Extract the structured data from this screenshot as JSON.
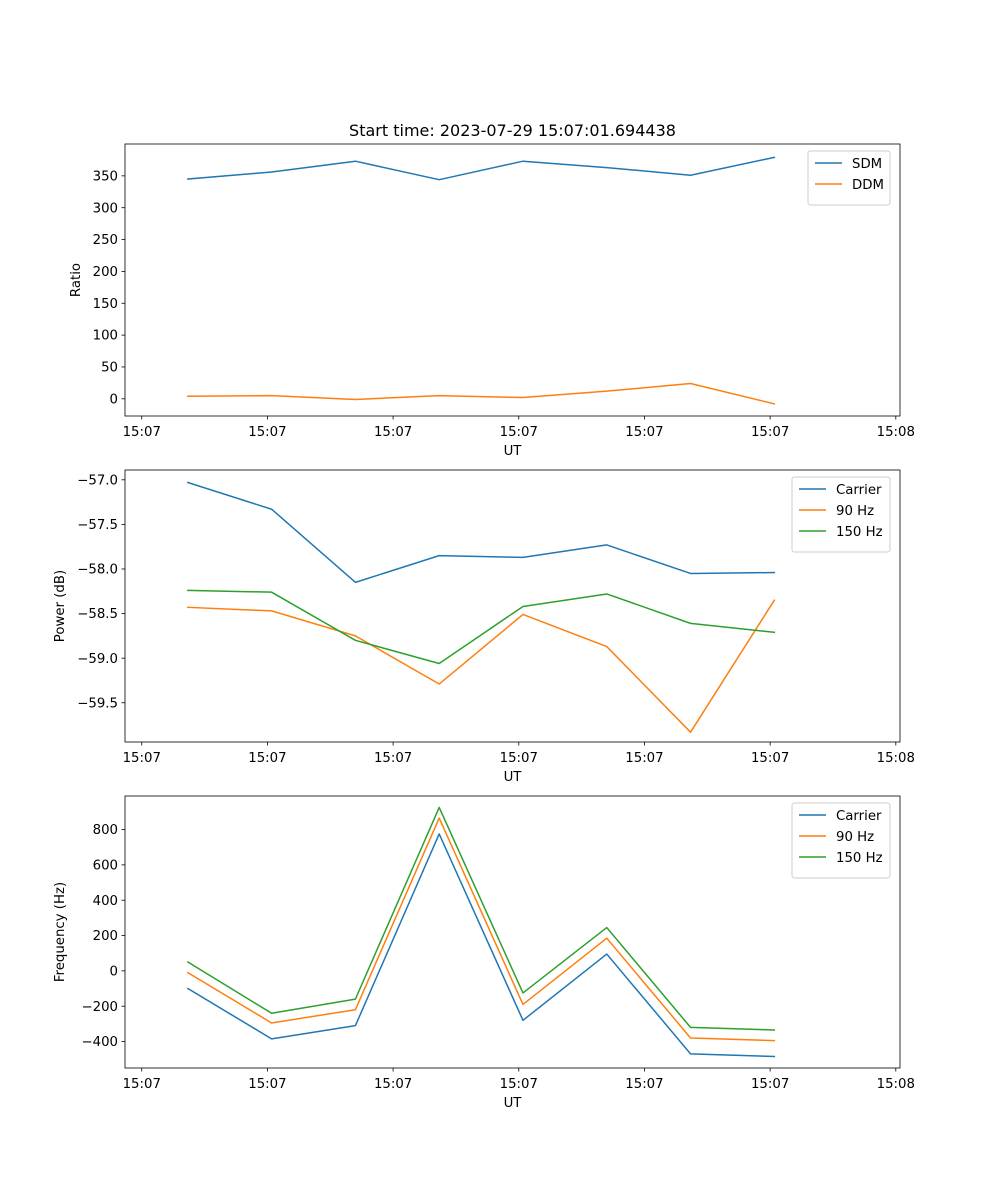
{
  "chart_data": [
    {
      "type": "line",
      "title": "Start time: 2023-07-29 15:07:01.694438",
      "xlabel": "UT",
      "ylabel": "Ratio",
      "x_index": [
        0,
        1,
        2,
        3,
        4,
        5,
        6,
        7
      ],
      "xlim": [
        -0.75,
        8.5
      ],
      "x_ticks": [
        -0.55,
        0.95,
        2.45,
        3.95,
        5.45,
        6.95,
        8.45
      ],
      "x_tick_labels": [
        "15:07",
        "15:07",
        "15:07",
        "15:07",
        "15:07",
        "15:07",
        "15:08"
      ],
      "ylim": [
        -27,
        400
      ],
      "y_ticks": [
        0,
        50,
        100,
        150,
        200,
        250,
        300,
        350
      ],
      "grid": false,
      "legend_position": "top-right",
      "series": [
        {
          "name": "SDM",
          "color": "#1f77b4",
          "values": [
            345,
            356,
            373,
            344,
            373,
            363,
            351,
            379
          ]
        },
        {
          "name": "DDM",
          "color": "#ff7f0e",
          "values": [
            4,
            5,
            -1,
            5,
            2,
            12,
            24,
            -8
          ]
        }
      ]
    },
    {
      "type": "line",
      "title": "",
      "xlabel": "UT",
      "ylabel": "Power (dB)",
      "x_index": [
        0,
        1,
        2,
        3,
        4,
        5,
        6,
        7
      ],
      "xlim": [
        -0.75,
        8.5
      ],
      "x_ticks": [
        -0.55,
        0.95,
        2.45,
        3.95,
        5.45,
        6.95,
        8.45
      ],
      "x_tick_labels": [
        "15:07",
        "15:07",
        "15:07",
        "15:07",
        "15:07",
        "15:07",
        "15:08"
      ],
      "ylim": [
        -59.94,
        -56.89
      ],
      "y_ticks": [
        -57.0,
        -57.5,
        -58.0,
        -58.5,
        -59.0,
        -59.5
      ],
      "y_tick_labels": [
        "−57.0",
        "−57.5",
        "−58.0",
        "−58.5",
        "−59.0",
        "−59.5"
      ],
      "grid": false,
      "legend_position": "top-right",
      "series": [
        {
          "name": "Carrier",
          "color": "#1f77b4",
          "values": [
            -57.03,
            -57.33,
            -58.15,
            -57.85,
            -57.87,
            -57.73,
            -58.05,
            -58.04
          ]
        },
        {
          "name": "90 Hz",
          "color": "#ff7f0e",
          "values": [
            -58.43,
            -58.47,
            -58.75,
            -59.29,
            -58.51,
            -58.87,
            -59.83,
            -58.35
          ]
        },
        {
          "name": "150 Hz",
          "color": "#2ca02c",
          "values": [
            -58.24,
            -58.26,
            -58.8,
            -59.06,
            -58.42,
            -58.28,
            -58.61,
            -58.71
          ]
        }
      ]
    },
    {
      "type": "line",
      "title": "",
      "xlabel": "UT",
      "ylabel": "Frequency (Hz)",
      "x_index": [
        0,
        1,
        2,
        3,
        4,
        5,
        6,
        7
      ],
      "xlim": [
        -0.75,
        8.5
      ],
      "x_ticks": [
        -0.55,
        0.95,
        2.45,
        3.95,
        5.45,
        6.95,
        8.45
      ],
      "x_tick_labels": [
        "15:07",
        "15:07",
        "15:07",
        "15:07",
        "15:07",
        "15:07",
        "15:08"
      ],
      "ylim": [
        -550,
        990
      ],
      "y_ticks": [
        -400,
        -200,
        0,
        200,
        400,
        600,
        800
      ],
      "y_tick_labels": [
        "−400",
        "−200",
        "0",
        "200",
        "400",
        "600",
        "800"
      ],
      "grid": false,
      "legend_position": "top-right",
      "series": [
        {
          "name": "Carrier",
          "color": "#1f77b4",
          "values": [
            -100,
            -385,
            -310,
            775,
            -280,
            95,
            -470,
            -485
          ]
        },
        {
          "name": "90 Hz",
          "color": "#ff7f0e",
          "values": [
            -10,
            -295,
            -220,
            865,
            -190,
            185,
            -380,
            -395
          ]
        },
        {
          "name": "150 Hz",
          "color": "#2ca02c",
          "values": [
            50,
            -240,
            -160,
            925,
            -125,
            245,
            -320,
            -335
          ]
        }
      ]
    }
  ]
}
